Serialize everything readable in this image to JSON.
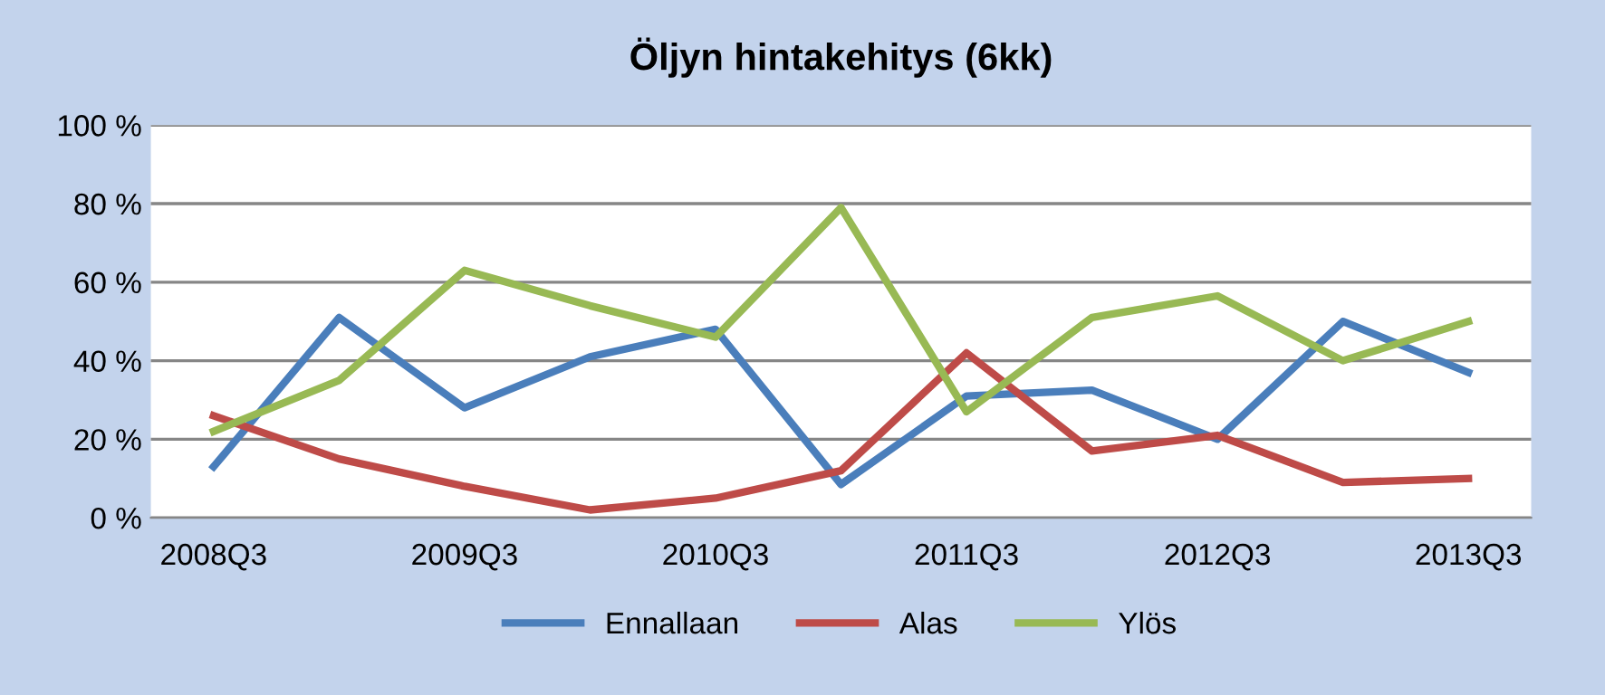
{
  "chart_data": {
    "type": "line",
    "title": "Öljyn hintakehitys (6kk)",
    "categories": [
      "2008Q3",
      null,
      "2009Q3",
      null,
      "2010Q3",
      null,
      "2011Q3",
      null,
      "2012Q3",
      null,
      "2013Q3"
    ],
    "series": [
      {
        "name": "Ennallaan",
        "color": "#4a7ebb",
        "values": [
          13,
          51,
          28,
          41,
          48,
          8.5,
          31,
          32.5,
          20,
          50,
          37
        ]
      },
      {
        "name": "Alas",
        "color": "#be4b48",
        "values": [
          26,
          15,
          8,
          2,
          5,
          12,
          42,
          17,
          21,
          9,
          10
        ]
      },
      {
        "name": "Ylös",
        "color": "#98b954",
        "values": [
          22,
          35,
          63,
          54,
          46,
          79,
          27,
          51,
          56.5,
          40,
          50
        ]
      }
    ],
    "ylim": [
      0,
      100
    ],
    "yticks": [
      {
        "value": 0,
        "label": "0 %"
      },
      {
        "value": 20,
        "label": "20 %"
      },
      {
        "value": 40,
        "label": "40 %"
      },
      {
        "value": 60,
        "label": "60 %"
      },
      {
        "value": 80,
        "label": "80 %"
      },
      {
        "value": 100,
        "label": "100 %"
      }
    ],
    "grid": "y",
    "legend": "bottom",
    "marker": "none",
    "line_style": "solid"
  }
}
